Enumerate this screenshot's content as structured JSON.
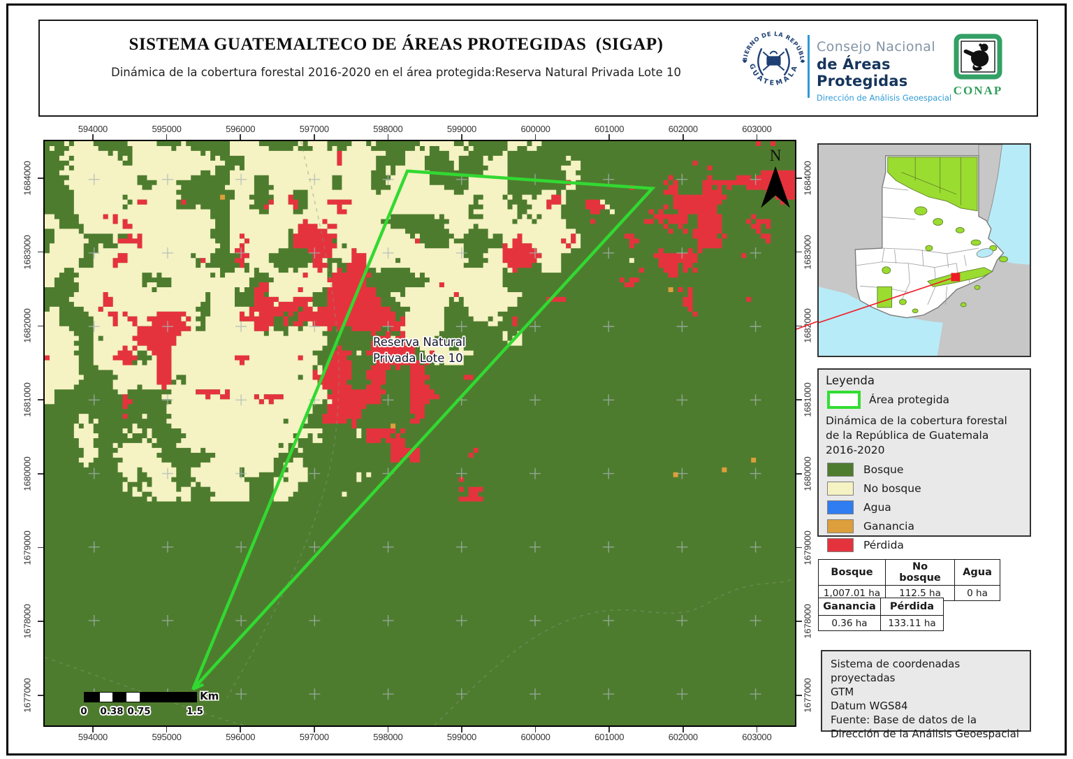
{
  "header": {
    "title": "SISTEMA GUATEMALTECO DE ÁREAS PROTEGIDAS  (SIGAP)",
    "subtitle": "Dinámica de la cobertura forestal 2016-2020 en el área protegida:Reserva Natural Privada Lote 10",
    "seal_top_text": "GOBIERNO DE LA REPÚBLICA",
    "seal_bottom_text": "GUATEMALA",
    "org_line1": "Consejo Nacional",
    "org_line2": "de Áreas Protegidas",
    "org_line3": "Dirección de Análisis Geoespacial",
    "conap_label": "CONAP"
  },
  "map": {
    "xticks": [
      "594000",
      "595000",
      "596000",
      "597000",
      "598000",
      "599000",
      "600000",
      "601000",
      "602000",
      "603000"
    ],
    "yticks": [
      "1684000",
      "1683000",
      "1682000",
      "1681000",
      "1680000",
      "1679000",
      "1678000",
      "1677000"
    ],
    "north_label": "N",
    "area_label_line1": "Reserva Natural",
    "area_label_line2": "Privada Lote 10",
    "scalebar": {
      "labels": [
        "0",
        "0.38",
        "0.75",
        "1.5"
      ],
      "unit": "Km"
    },
    "colors": {
      "bosque": "#4e7c2e",
      "no_bosque": "#f5f2c3",
      "agua": "#2f7df1",
      "ganancia": "#dd9f3b",
      "perdida": "#e5333d",
      "area_outline": "#32d932"
    }
  },
  "legend": {
    "heading": "Leyenda",
    "area_item_label": "Área protegida",
    "section_title": "Dinámica de la cobertura forestal de la República de Guatemala 2016-2020",
    "items": [
      {
        "label": "Bosque",
        "color": "#4e7c2e"
      },
      {
        "label": "No bosque",
        "color": "#f5f2c3"
      },
      {
        "label": "Agua",
        "color": "#2f7df1"
      },
      {
        "label": "Ganancia",
        "color": "#dd9f3b"
      },
      {
        "label": "Pérdida",
        "color": "#e5333d"
      }
    ]
  },
  "tables": {
    "table1": {
      "headers": [
        "Bosque",
        "No bosque",
        "Agua"
      ],
      "values": [
        "1,007.01 ha",
        "112.5 ha",
        "0 ha"
      ]
    },
    "table2": {
      "headers": [
        "Ganancia",
        "Pérdida"
      ],
      "values": [
        "0.36 ha",
        "133.11 ha"
      ]
    }
  },
  "info_box": {
    "lines": [
      "Sistema de coordenadas proyectadas",
      "GTM",
      "Datum WGS84",
      "Fuente: Base de datos de la",
      "Dirección de la Análisis Geoespacial"
    ]
  }
}
